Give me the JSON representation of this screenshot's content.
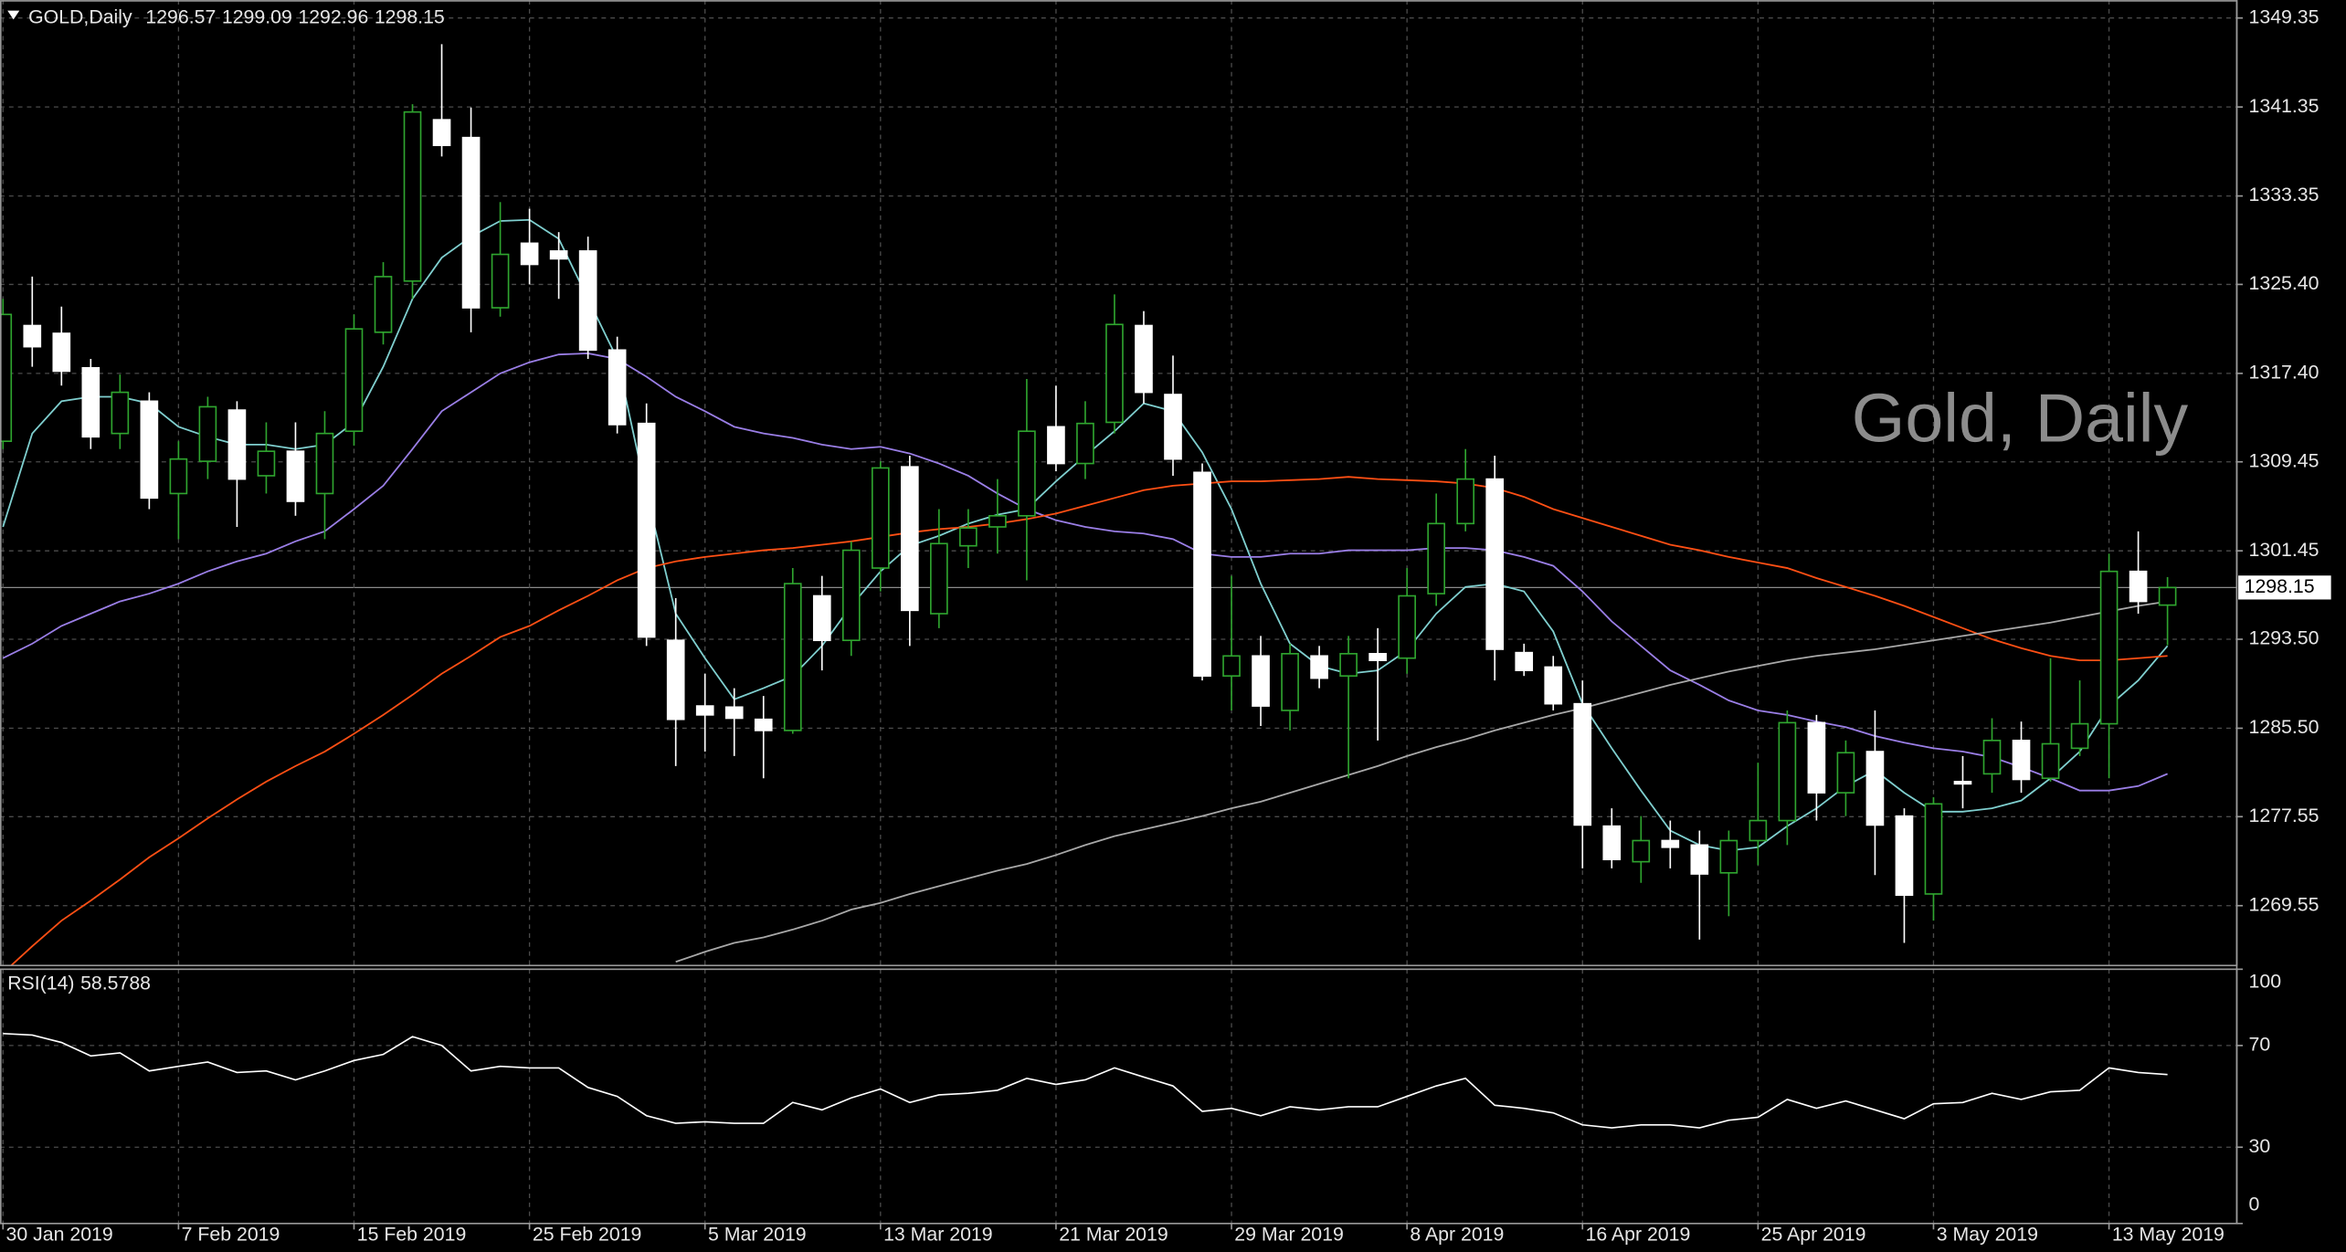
{
  "chart_data": [
    {
      "type": "candlestick",
      "title": "GOLD,Daily",
      "watermark": "Gold, Daily",
      "categories": [
        "30 Jan 2019",
        null,
        null,
        null,
        null,
        null,
        "7 Feb 2019",
        null,
        null,
        null,
        null,
        null,
        "15 Feb 2019",
        null,
        null,
        null,
        null,
        null,
        "25 Feb 2019",
        null,
        null,
        null,
        null,
        null,
        "5 Mar 2019",
        null,
        null,
        null,
        null,
        null,
        "13 Mar 2019",
        null,
        null,
        null,
        null,
        null,
        "21 Mar 2019",
        null,
        null,
        null,
        null,
        null,
        "29 Mar 2019",
        null,
        null,
        null,
        null,
        null,
        "8 Apr 2019",
        null,
        null,
        null,
        null,
        null,
        "16 Apr 2019",
        null,
        null,
        null,
        null,
        null,
        "25 Apr 2019",
        null,
        null,
        null,
        null,
        null,
        "3 May 2019",
        null,
        null,
        null,
        null,
        null,
        "13 May 2019",
        null,
        null
      ],
      "open": [
        1311.3,
        1321.7,
        1321.0,
        1317.9,
        1312.0,
        1314.9,
        1306.6,
        1309.5,
        1314.1,
        1308.2,
        1310.4,
        1306.6,
        1312.2,
        1321.1,
        1325.7,
        1340.2,
        1338.6,
        1323.3,
        1329.1,
        1328.4,
        1328.4,
        1319.5,
        1312.9,
        1293.4,
        1287.5,
        1287.4,
        1286.3,
        1285.3,
        1297.4,
        1293.4,
        1299.9,
        1309.0,
        1295.8,
        1301.9,
        1303.6,
        1304.6,
        1312.6,
        1309.3,
        1313.0,
        1321.7,
        1315.5,
        1308.5,
        1290.2,
        1292.0,
        1287.1,
        1292.0,
        1290.2,
        1292.2,
        1291.8,
        1297.6,
        1303.9,
        1307.9,
        1292.3,
        1291.0,
        1287.7,
        1276.7,
        1273.5,
        1275.4,
        1275.0,
        1272.5,
        1275.4,
        1277.2,
        1286.0,
        1279.7,
        1283.4,
        1277.6,
        1270.6,
        1280.7,
        1281.4,
        1284.4,
        1281.0,
        1283.7,
        1285.9,
        1299.6,
        1296.57
      ],
      "high": [
        1324.1,
        1326.1,
        1323.4,
        1318.7,
        1317.3,
        1315.7,
        1311.3,
        1315.3,
        1314.9,
        1313.0,
        1313.0,
        1314.0,
        1322.7,
        1327.4,
        1341.6,
        1347.0,
        1341.3,
        1332.8,
        1332.2,
        1330.1,
        1329.7,
        1320.7,
        1314.7,
        1297.2,
        1290.4,
        1289.1,
        1288.4,
        1299.9,
        1299.2,
        1302.3,
        1309.5,
        1310.0,
        1305.2,
        1305.2,
        1307.9,
        1316.9,
        1316.3,
        1314.9,
        1324.5,
        1323.0,
        1319.0,
        1309.3,
        1299.2,
        1293.8,
        1293.1,
        1292.9,
        1293.8,
        1294.5,
        1299.9,
        1306.6,
        1310.6,
        1310.0,
        1293.1,
        1292.0,
        1289.8,
        1278.3,
        1277.6,
        1277.2,
        1276.3,
        1276.3,
        1282.4,
        1287.1,
        1286.7,
        1284.4,
        1287.1,
        1278.3,
        1279.3,
        1283.0,
        1286.4,
        1286.1,
        1291.8,
        1289.8,
        1301.2,
        1303.2,
        1299.09
      ],
      "low": [
        1310.6,
        1318.0,
        1316.3,
        1310.6,
        1310.6,
        1305.2,
        1302.5,
        1307.9,
        1303.6,
        1306.6,
        1304.6,
        1302.5,
        1310.9,
        1320.0,
        1324.1,
        1336.9,
        1321.1,
        1322.5,
        1325.4,
        1324.1,
        1318.7,
        1312.0,
        1292.9,
        1282.1,
        1283.4,
        1283.0,
        1281.0,
        1285.0,
        1290.7,
        1292.0,
        1297.8,
        1292.9,
        1294.5,
        1299.9,
        1301.2,
        1298.8,
        1308.6,
        1307.9,
        1312.0,
        1314.7,
        1308.2,
        1289.8,
        1287.1,
        1285.7,
        1285.3,
        1289.1,
        1281.0,
        1284.4,
        1290.4,
        1296.5,
        1303.2,
        1289.8,
        1290.2,
        1287.1,
        1272.9,
        1272.9,
        1271.6,
        1272.9,
        1266.5,
        1268.6,
        1273.2,
        1275.0,
        1277.2,
        1277.6,
        1272.3,
        1266.2,
        1268.2,
        1278.3,
        1279.7,
        1279.7,
        1280.7,
        1283.0,
        1281.0,
        1295.8,
        1292.96
      ],
      "close": [
        1322.7,
        1319.8,
        1317.6,
        1311.7,
        1315.7,
        1306.2,
        1309.7,
        1314.4,
        1307.9,
        1310.4,
        1305.9,
        1312.0,
        1321.4,
        1326.1,
        1340.9,
        1337.9,
        1323.3,
        1328.1,
        1327.2,
        1327.7,
        1319.5,
        1312.8,
        1293.7,
        1286.3,
        1286.7,
        1286.4,
        1285.3,
        1298.5,
        1293.4,
        1301.5,
        1308.9,
        1296.1,
        1302.1,
        1303.5,
        1304.6,
        1312.2,
        1309.3,
        1312.9,
        1321.8,
        1315.7,
        1309.7,
        1290.2,
        1292.0,
        1287.5,
        1292.2,
        1290.0,
        1292.2,
        1291.6,
        1297.4,
        1303.9,
        1307.9,
        1292.6,
        1290.7,
        1287.7,
        1276.8,
        1273.7,
        1275.4,
        1274.8,
        1272.4,
        1275.4,
        1277.2,
        1286.0,
        1279.7,
        1283.3,
        1276.8,
        1270.5,
        1278.7,
        1280.5,
        1284.4,
        1280.9,
        1284.1,
        1285.9,
        1299.6,
        1296.9,
        1298.15
      ],
      "up_color": "#2fa52f",
      "down_color": "#ffffff",
      "series": [
        {
          "color": "#7fcfcf",
          "values": [
            1303.6,
            1312.0,
            1314.9,
            1315.3,
            1315.3,
            1314.7,
            1312.6,
            1311.7,
            1311.0,
            1311.0,
            1310.6,
            1311.0,
            1313.0,
            1318.0,
            1324.1,
            1327.8,
            1329.7,
            1331.1,
            1331.2,
            1329.5,
            1324.1,
            1318.7,
            1306.6,
            1295.8,
            1291.8,
            1288.1,
            1289.1,
            1290.2,
            1292.9,
            1296.5,
            1299.6,
            1301.9,
            1302.8,
            1303.9,
            1304.7,
            1305.2,
            1307.7,
            1310.0,
            1312.2,
            1314.7,
            1314.0,
            1310.3,
            1305.2,
            1298.5,
            1293.1,
            1291.1,
            1290.4,
            1290.7,
            1292.5,
            1295.8,
            1298.2,
            1298.5,
            1297.8,
            1294.2,
            1287.7,
            1283.7,
            1279.9,
            1276.3,
            1275.0,
            1274.5,
            1274.8,
            1276.7,
            1278.3,
            1280.3,
            1281.7,
            1279.7,
            1278.0,
            1278.0,
            1278.3,
            1279.0,
            1281.0,
            1283.4,
            1287.5,
            1289.8,
            1292.9
          ]
        },
        {
          "color": "#9a7ee6",
          "values": [
            1291.8,
            1293.1,
            1294.7,
            1295.8,
            1296.9,
            1297.6,
            1298.5,
            1299.6,
            1300.5,
            1301.2,
            1302.3,
            1303.2,
            1305.2,
            1307.3,
            1310.6,
            1314.0,
            1315.7,
            1317.4,
            1318.4,
            1319.1,
            1319.2,
            1318.7,
            1317.1,
            1315.3,
            1314.0,
            1312.6,
            1312.0,
            1311.6,
            1311.0,
            1310.6,
            1310.8,
            1310.2,
            1309.3,
            1308.2,
            1306.6,
            1305.2,
            1304.2,
            1303.6,
            1303.2,
            1303.0,
            1302.5,
            1301.2,
            1300.9,
            1300.9,
            1301.2,
            1301.2,
            1301.5,
            1301.5,
            1301.5,
            1301.7,
            1301.7,
            1301.5,
            1300.9,
            1300.1,
            1297.8,
            1295.1,
            1292.9,
            1290.7,
            1289.4,
            1288.0,
            1287.1,
            1286.7,
            1286.1,
            1285.6,
            1284.8,
            1284.2,
            1283.7,
            1283.4,
            1282.9,
            1282.0,
            1281.0,
            1279.9,
            1279.9,
            1280.3,
            1281.4
          ]
        },
        {
          "color": "#ff4f14",
          "values": [
            1263.5,
            1265.9,
            1268.2,
            1270.0,
            1271.9,
            1273.9,
            1275.6,
            1277.4,
            1279.1,
            1280.7,
            1282.1,
            1283.4,
            1285.0,
            1286.7,
            1288.5,
            1290.4,
            1292.0,
            1293.7,
            1294.7,
            1296.1,
            1297.4,
            1298.8,
            1299.9,
            1300.5,
            1300.9,
            1301.2,
            1301.5,
            1301.7,
            1302.0,
            1302.3,
            1302.7,
            1303.1,
            1303.4,
            1303.6,
            1303.9,
            1304.3,
            1304.8,
            1305.5,
            1306.2,
            1306.9,
            1307.3,
            1307.5,
            1307.7,
            1307.7,
            1307.8,
            1307.9,
            1308.1,
            1307.9,
            1307.8,
            1307.7,
            1307.5,
            1307.1,
            1306.3,
            1305.2,
            1304.4,
            1303.6,
            1302.8,
            1302.0,
            1301.5,
            1300.9,
            1300.4,
            1299.9,
            1299.0,
            1298.2,
            1297.4,
            1296.5,
            1295.5,
            1294.5,
            1293.5,
            1292.7,
            1292.0,
            1291.6,
            1291.6,
            1291.8,
            1292.0
          ]
        },
        {
          "color": "#a8a8a8",
          "values": [
            null,
            null,
            null,
            null,
            null,
            null,
            null,
            null,
            null,
            null,
            null,
            null,
            null,
            null,
            null,
            null,
            null,
            null,
            null,
            null,
            null,
            null,
            null,
            1264.5,
            1265.4,
            1266.2,
            1266.7,
            1267.4,
            1268.2,
            1269.2,
            1269.8,
            1270.6,
            1271.3,
            1272.0,
            1272.7,
            1273.3,
            1274.1,
            1275.0,
            1275.8,
            1276.4,
            1277.0,
            1277.6,
            1278.3,
            1278.9,
            1279.7,
            1280.5,
            1281.3,
            1282.1,
            1283.0,
            1283.8,
            1284.5,
            1285.3,
            1286.0,
            1286.7,
            1287.3,
            1288.0,
            1288.7,
            1289.4,
            1290.0,
            1290.6,
            1291.1,
            1291.6,
            1292.0,
            1292.3,
            1292.6,
            1293.0,
            1293.4,
            1293.8,
            1294.2,
            1294.6,
            1295.0,
            1295.5,
            1296.0,
            1296.5,
            1296.9
          ]
        }
      ],
      "ylim": [
        1264.17,
        1350.96
      ],
      "yticks": [
        1349.35,
        1341.35,
        1333.35,
        {
          "value": 1325.4,
          "label": "1325.40"
        },
        {
          "value": 1317.4,
          "label": "1317.40"
        },
        1309.45,
        1301.45,
        {
          "value": 1293.5,
          "label": "1293.50"
        },
        {
          "value": 1285.5,
          "label": "1285.50"
        },
        1277.55,
        1269.55
      ],
      "grid": true
    },
    {
      "type": "line",
      "title": "RSI(14)",
      "color": "#ffffff",
      "values": [
        74.7,
        74.1,
        71.2,
        65.9,
        67.1,
        60.0,
        61.8,
        63.5,
        59.4,
        60.0,
        56.5,
        60.0,
        64.1,
        66.5,
        73.5,
        70.0,
        60.0,
        61.8,
        61.2,
        61.2,
        53.5,
        50.0,
        42.4,
        39.4,
        40.0,
        39.4,
        39.4,
        47.6,
        44.7,
        49.4,
        52.9,
        47.6,
        50.6,
        51.2,
        52.4,
        57.1,
        54.7,
        56.5,
        61.2,
        57.6,
        54.1,
        44.1,
        45.3,
        42.4,
        45.9,
        44.7,
        45.9,
        45.9,
        50.0,
        54.1,
        57.1,
        46.5,
        45.3,
        43.5,
        38.8,
        37.6,
        38.8,
        38.8,
        37.6,
        40.6,
        41.8,
        48.8,
        45.3,
        48.2,
        44.7,
        41.2,
        47.1,
        47.6,
        51.2,
        48.8,
        51.8,
        52.4,
        61.2,
        59.4,
        58.5788
      ],
      "ylim": [
        0,
        100
      ],
      "yticks": [
        100,
        70,
        30,
        0
      ],
      "grid": true
    }
  ]
}
